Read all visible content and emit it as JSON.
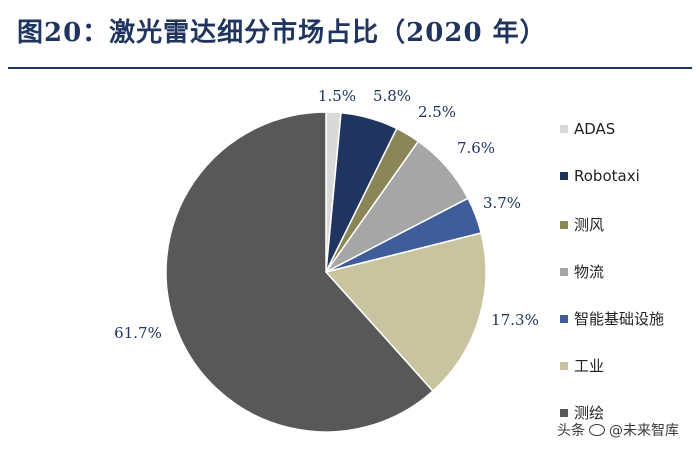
{
  "header": {
    "title": "图20：激光雷达细分市场占比（2020 年）"
  },
  "watermark": {
    "prefix": "头条",
    "handle": "@未来智库"
  },
  "chart_data": {
    "type": "pie",
    "title": "图20：激光雷达细分市场占比（2020 年）",
    "slices": [
      {
        "label": "ADAS",
        "value": 1.5,
        "value_label": "1.5%",
        "color": "#d9d9d9"
      },
      {
        "label": "Robotaxi",
        "value": 5.8,
        "value_label": "5.8%",
        "color": "#1f3560"
      },
      {
        "label": "测风",
        "value": 2.5,
        "value_label": "2.5%",
        "color": "#8b8658"
      },
      {
        "label": "物流",
        "value": 7.6,
        "value_label": "7.6%",
        "color": "#a6a6a6"
      },
      {
        "label": "智能基础设施",
        "value": 3.7,
        "value_label": "3.7%",
        "color": "#3e5d9a"
      },
      {
        "label": "工业",
        "value": 17.3,
        "value_label": "17.3%",
        "color": "#c9c4a0"
      },
      {
        "label": "测绘",
        "value": 61.7,
        "value_label": "61.7%",
        "color": "#585858"
      }
    ],
    "start_angle": "12 o'clock",
    "direction": "clockwise",
    "legend_placement": "right",
    "label_color": "#1f3560"
  }
}
